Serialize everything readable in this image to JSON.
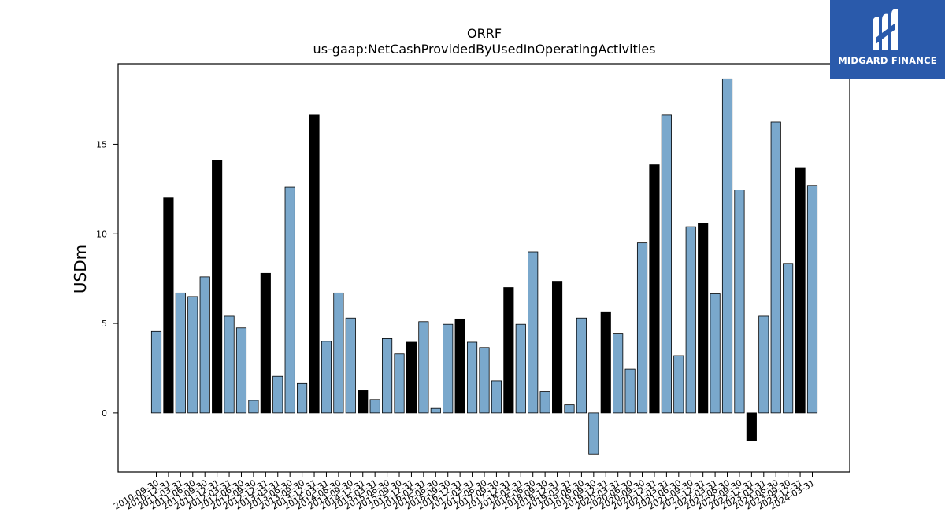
{
  "chart_data": {
    "type": "bar",
    "title": "ORRF",
    "subtitle": "us-gaap:NetCashProvidedByUsedInOperatingActivities",
    "ylabel": "USDm",
    "xlabel": "",
    "ylim": [
      -3.3,
      19.5
    ],
    "yticks": [
      0,
      5,
      10,
      15
    ],
    "grid": false,
    "bar_colors": {
      "quarterly": "#7aa8cc",
      "annual": "#000000"
    },
    "categories": [
      "2010-09-30",
      "2010-12-31",
      "2011-03-31",
      "2011-06-30",
      "2011-09-30",
      "2011-12-31",
      "2012-03-31",
      "2012-06-30",
      "2012-09-30",
      "2012-12-31",
      "2013-03-31",
      "2013-06-30",
      "2013-09-30",
      "2013-12-31",
      "2014-03-31",
      "2014-06-30",
      "2014-09-30",
      "2014-12-31",
      "2015-03-31",
      "2015-06-30",
      "2015-09-30",
      "2015-12-31",
      "2016-03-31",
      "2016-06-30",
      "2016-09-30",
      "2016-12-31",
      "2017-03-31",
      "2017-06-30",
      "2017-09-30",
      "2017-12-31",
      "2018-03-31",
      "2018-06-30",
      "2018-09-30",
      "2018-12-31",
      "2019-03-31",
      "2019-06-30",
      "2019-09-30",
      "2019-12-31",
      "2020-03-31",
      "2020-06-30",
      "2020-09-30",
      "2020-12-31",
      "2021-03-31",
      "2021-06-30",
      "2021-09-30",
      "2021-12-31",
      "2022-03-31",
      "2022-06-30",
      "2022-09-30",
      "2022-12-31",
      "2023-03-31",
      "2023-06-30",
      "2023-09-30",
      "2023-12-31",
      "2024-03-31"
    ],
    "visible_labels": [
      "2010-09-30",
      "2010-12-31",
      "2011-03-31",
      "2011-06-30",
      "2011-09-30",
      "2011-12-31",
      "2012-03-31",
      "2012-06-30",
      "2012-09-30",
      "2012-12-31",
      "2013-03-31",
      "2013-06-30",
      "2013-09-30",
      "2013-12-31",
      "2014-03-31",
      "2014-06-30",
      "2014-09-30",
      "2014-12-31",
      "2015-03-31",
      "2015-06-30",
      "2015-09-30",
      "2015-12-31",
      "2016-03-31",
      "2016-06-30",
      "2016-09-30",
      "2016-12-31",
      "2017-03-31",
      "2017-06-30",
      "2017-09-30",
      "2017-12-31",
      "2018-03-31",
      "2018-06-30",
      "2018-09-30",
      "2018-12-31",
      "2019-03-31",
      "2019-06-30",
      "2019-09-30",
      "2019-12-31",
      "2020-03-31",
      "2020-06-30",
      "2020-09-30",
      "2020-12-31",
      "2021-03-31",
      "2021-06-30",
      "2021-09-30",
      "2021-12-31",
      "2022-03-31",
      "2022-06-30",
      "2022-09-30",
      "2022-12-31",
      "2023-03-31",
      "2023-06-30",
      "2023-09-30",
      "2023-12-31",
      "2024-03-31"
    ],
    "values": [
      4.55,
      12.0,
      6.7,
      6.5,
      7.6,
      14.1,
      5.4,
      4.75,
      0.7,
      7.8,
      2.05,
      12.6,
      1.65,
      16.65,
      4.0,
      6.7,
      5.3,
      1.25,
      0.75,
      4.15,
      3.3,
      3.95,
      5.1,
      0.25,
      4.95,
      5.25,
      3.95,
      3.65,
      1.8,
      7.0,
      4.95,
      9.0,
      1.2,
      7.35,
      0.45,
      5.3,
      -2.3,
      5.65,
      4.45,
      2.45,
      9.5,
      13.85,
      16.65,
      3.2,
      10.4,
      10.6,
      6.65,
      18.65,
      12.45,
      -1.55,
      5.4,
      16.25,
      8.35,
      13.7,
      12.7
    ],
    "annual": [
      false,
      true,
      false,
      false,
      false,
      true,
      false,
      false,
      false,
      true,
      false,
      false,
      false,
      true,
      false,
      false,
      false,
      true,
      false,
      false,
      false,
      true,
      false,
      false,
      false,
      true,
      false,
      false,
      false,
      true,
      false,
      false,
      false,
      true,
      false,
      false,
      false,
      true,
      false,
      false,
      false,
      true,
      false,
      false,
      false,
      true,
      false,
      false,
      false,
      true,
      false,
      false,
      false,
      true,
      false
    ]
  },
  "logo": {
    "text": "MIDGARD FINANCE",
    "icon": "midgard-logo-icon"
  }
}
